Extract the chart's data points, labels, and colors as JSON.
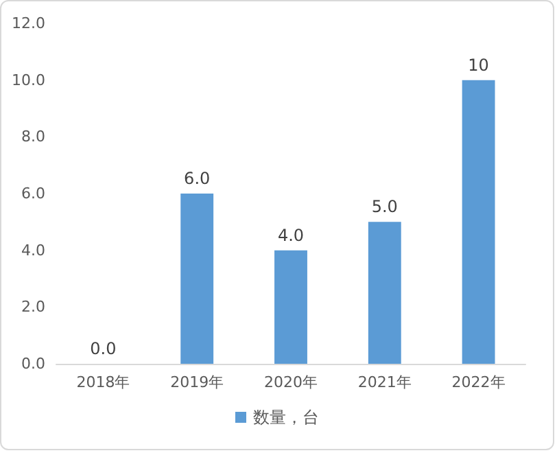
{
  "chart_data": {
    "type": "bar",
    "categories": [
      "2018年",
      "2019年",
      "2020年",
      "2021年",
      "2022年"
    ],
    "series": [
      {
        "name": "数量，台",
        "color": "#5b9bd5",
        "values": [
          0,
          6,
          4,
          5,
          10
        ]
      }
    ],
    "value_labels": [
      "0.0",
      "6.0",
      "4.0",
      "5.0",
      "10"
    ],
    "ylim": [
      0,
      12
    ],
    "yticks": [
      {
        "value": 0,
        "label": "0.0"
      },
      {
        "value": 2,
        "label": "2.0"
      },
      {
        "value": 4,
        "label": "4.0"
      },
      {
        "value": 6,
        "label": "6.0"
      },
      {
        "value": 8,
        "label": "8.0"
      },
      {
        "value": 10,
        "label": "10.0"
      },
      {
        "value": 12,
        "label": "12.0"
      }
    ],
    "grid": false,
    "legend": "bottom"
  }
}
